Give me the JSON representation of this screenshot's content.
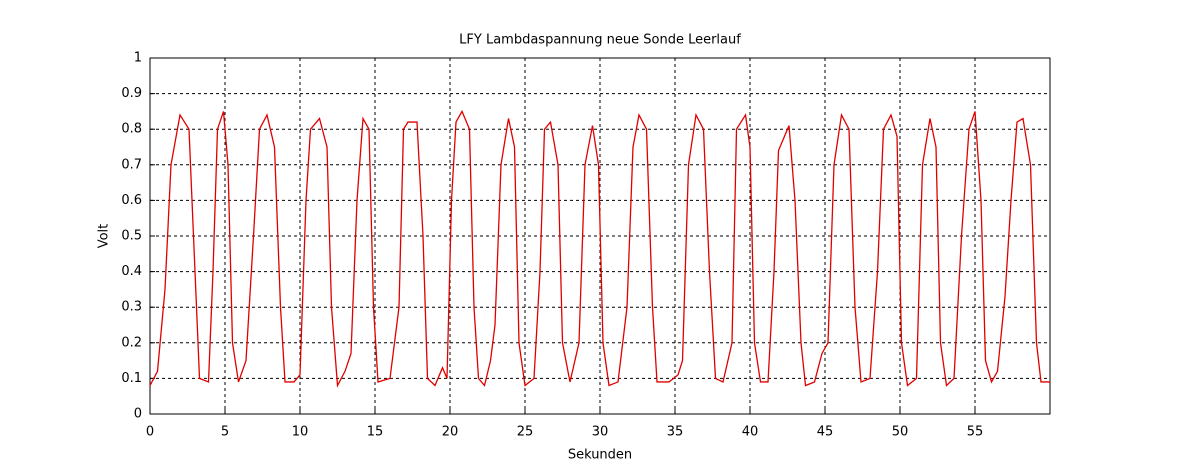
{
  "chart_data": {
    "type": "line",
    "title": "LFY  Lambdaspannung neue Sonde Leerlauf",
    "x_label": "Sekunden",
    "y_label": "Volt",
    "xlim": [
      0,
      60
    ],
    "ylim": [
      0,
      1
    ],
    "xticks": [
      0,
      5,
      10,
      15,
      20,
      25,
      30,
      35,
      40,
      45,
      50,
      55
    ],
    "yticks": [
      0,
      0.1,
      0.2,
      0.3,
      0.4,
      0.5,
      0.6,
      0.7,
      0.8,
      0.9,
      1
    ],
    "grid": true,
    "x": [
      0,
      0.5,
      1.0,
      1.4,
      2.0,
      2.6,
      3.0,
      3.3,
      3.9,
      4.2,
      4.5,
      4.9,
      5.2,
      5.5,
      5.9,
      6.4,
      6.9,
      7.3,
      7.8,
      8.3,
      8.7,
      9.0,
      9.6,
      10.0,
      10.4,
      10.7,
      11.3,
      11.8,
      12.1,
      12.5,
      13.0,
      13.4,
      13.8,
      14.2,
      14.6,
      14.9,
      15.2,
      16.0,
      16.6,
      16.9,
      17.2,
      17.8,
      18.2,
      18.5,
      19.0,
      19.5,
      19.8,
      20.1,
      20.4,
      20.8,
      21.3,
      21.6,
      21.9,
      22.3,
      22.7,
      23.0,
      23.4,
      23.9,
      24.3,
      24.6,
      25.0,
      25.6,
      26.0,
      26.3,
      26.7,
      27.2,
      27.5,
      28.0,
      28.6,
      29.0,
      29.5,
      29.9,
      30.2,
      30.6,
      31.2,
      31.8,
      32.2,
      32.6,
      33.1,
      33.5,
      33.8,
      34.6,
      35.2,
      35.5,
      35.9,
      36.4,
      36.9,
      37.3,
      37.7,
      38.2,
      38.8,
      39.1,
      39.7,
      40.0,
      40.3,
      40.7,
      41.2,
      41.6,
      41.9,
      42.6,
      43.0,
      43.4,
      43.7,
      44.3,
      44.8,
      45.2,
      45.6,
      46.1,
      46.6,
      47.0,
      47.4,
      48.0,
      48.5,
      48.9,
      49.4,
      49.8,
      50.1,
      50.5,
      51.1,
      51.5,
      52.0,
      52.4,
      52.7,
      53.1,
      53.6,
      54.1,
      54.6,
      55.0,
      55.4,
      55.7,
      56.1,
      56.5,
      57.0,
      57.4,
      57.8,
      58.2,
      58.7,
      59.1,
      59.4,
      60.0
    ],
    "series": [
      {
        "name": "Volt",
        "color": "#e00000",
        "values": [
          0.08,
          0.12,
          0.35,
          0.7,
          0.84,
          0.8,
          0.4,
          0.1,
          0.09,
          0.4,
          0.8,
          0.85,
          0.7,
          0.2,
          0.09,
          0.15,
          0.5,
          0.8,
          0.84,
          0.75,
          0.3,
          0.09,
          0.09,
          0.11,
          0.6,
          0.8,
          0.83,
          0.75,
          0.3,
          0.08,
          0.12,
          0.17,
          0.6,
          0.83,
          0.8,
          0.3,
          0.09,
          0.1,
          0.3,
          0.8,
          0.82,
          0.82,
          0.5,
          0.1,
          0.08,
          0.13,
          0.1,
          0.6,
          0.82,
          0.85,
          0.8,
          0.3,
          0.1,
          0.08,
          0.15,
          0.25,
          0.7,
          0.83,
          0.75,
          0.2,
          0.08,
          0.1,
          0.4,
          0.8,
          0.82,
          0.7,
          0.2,
          0.09,
          0.2,
          0.7,
          0.81,
          0.7,
          0.2,
          0.08,
          0.09,
          0.3,
          0.75,
          0.84,
          0.8,
          0.3,
          0.09,
          0.09,
          0.11,
          0.15,
          0.7,
          0.84,
          0.8,
          0.4,
          0.1,
          0.09,
          0.2,
          0.8,
          0.84,
          0.75,
          0.2,
          0.09,
          0.09,
          0.4,
          0.74,
          0.81,
          0.6,
          0.2,
          0.08,
          0.09,
          0.17,
          0.2,
          0.7,
          0.84,
          0.8,
          0.3,
          0.09,
          0.1,
          0.4,
          0.8,
          0.84,
          0.78,
          0.2,
          0.08,
          0.1,
          0.7,
          0.83,
          0.75,
          0.2,
          0.08,
          0.1,
          0.5,
          0.8,
          0.85,
          0.6,
          0.15,
          0.09,
          0.12,
          0.33,
          0.6,
          0.82,
          0.83,
          0.7,
          0.2,
          0.09,
          0.09
        ]
      }
    ]
  }
}
